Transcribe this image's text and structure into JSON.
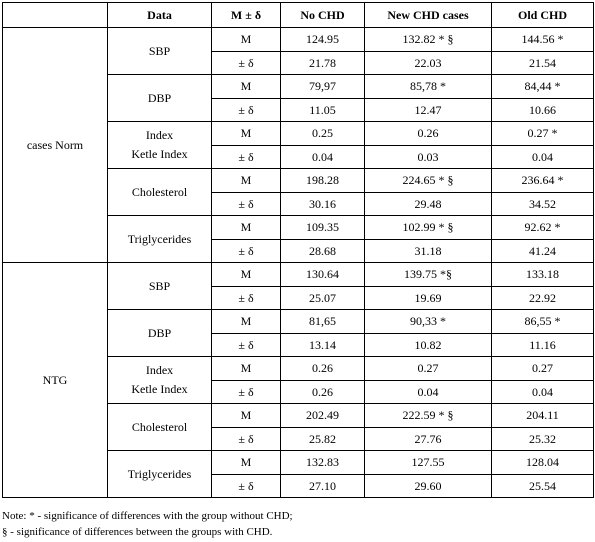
{
  "headers": [
    "Data",
    "M ± δ",
    "No CHD",
    "New CHD cases",
    "Old CHD"
  ],
  "groups": [
    {
      "name": "cases Norm",
      "variables": [
        {
          "label": [
            "SBP"
          ],
          "M": [
            "124.95",
            "132.82 * §",
            "144.56 *"
          ],
          "d": [
            "21.78",
            "22.03",
            "21.54"
          ]
        },
        {
          "label": [
            "DBP"
          ],
          "M": [
            "79,97",
            "85,78 *",
            "84,44 *"
          ],
          "d": [
            "11.05",
            "12.47",
            "10.66"
          ]
        },
        {
          "label": [
            "Index",
            "Ketle Index"
          ],
          "M": [
            "0.25",
            "0.26",
            "0.27 *"
          ],
          "d": [
            "0.04",
            "0.03",
            "0.04"
          ]
        },
        {
          "label": [
            "Cholesterol"
          ],
          "M": [
            "198.28",
            "224.65 * §",
            "236.64 *"
          ],
          "d": [
            "30.16",
            "29.48",
            "34.52"
          ]
        },
        {
          "label": [
            "Triglycerides"
          ],
          "M": [
            "109.35",
            "102.99 * §",
            "92.62 *"
          ],
          "d": [
            "28.68",
            "31.18",
            "41.24"
          ]
        }
      ]
    },
    {
      "name": "NTG",
      "variables": [
        {
          "label": [
            "SBP"
          ],
          "M": [
            "130.64",
            "139.75 *§",
            "133.18"
          ],
          "d": [
            "25.07",
            "19.69",
            "22.92"
          ]
        },
        {
          "label": [
            "DBP"
          ],
          "M": [
            "81,65",
            "90,33 *",
            "86,55 *"
          ],
          "d": [
            "13.14",
            "10.82",
            "11.16"
          ]
        },
        {
          "label": [
            "Index",
            "Ketle Index"
          ],
          "M": [
            "0.26",
            "0.27",
            "0.27"
          ],
          "d": [
            "0.26",
            "0.04",
            "0.04"
          ]
        },
        {
          "label": [
            "Cholesterol"
          ],
          "M": [
            "202.49",
            "222.59 * §",
            "204.11"
          ],
          "d": [
            "25.82",
            "27.76",
            "25.32"
          ]
        },
        {
          "label": [
            "Triglycerides"
          ],
          "M": [
            "132.83",
            "127.55",
            "128.04"
          ],
          "d": [
            "27.10",
            "29.60",
            "25.54"
          ]
        }
      ]
    }
  ],
  "stat_labels": {
    "mean": "M",
    "sd": "± δ"
  },
  "notes": [
    "Note: * - significance of differences with the group without CHD;",
    "§ - significance of differences between the groups with CHD."
  ]
}
